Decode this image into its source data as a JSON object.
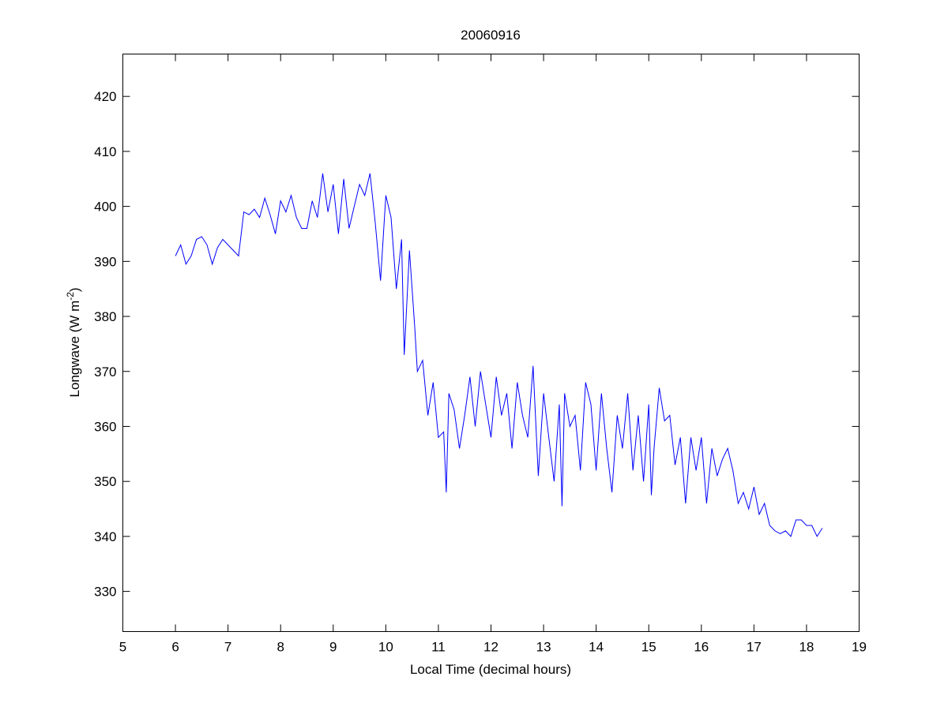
{
  "chart_data": {
    "type": "line",
    "title": "20060916",
    "xlabel": "Local Time (decimal hours)",
    "ylabel": {
      "base": "Longwave (W m",
      "sup": "-2",
      "end": ")"
    },
    "xlim": [
      5,
      19
    ],
    "ylim": [
      322.7,
      427.7
    ],
    "xticks": [
      5,
      6,
      7,
      8,
      9,
      10,
      11,
      12,
      13,
      14,
      15,
      16,
      17,
      18,
      19
    ],
    "yticks": [
      330,
      340,
      350,
      360,
      370,
      380,
      390,
      400,
      410,
      420
    ],
    "grid": false,
    "series": [
      {
        "name": "Longwave",
        "color": "#0000ff",
        "x": [
          6.0,
          6.1,
          6.2,
          6.3,
          6.4,
          6.5,
          6.6,
          6.7,
          6.8,
          6.9,
          7.0,
          7.1,
          7.2,
          7.3,
          7.4,
          7.5,
          7.6,
          7.7,
          7.8,
          7.9,
          8.0,
          8.1,
          8.2,
          8.3,
          8.4,
          8.5,
          8.6,
          8.7,
          8.8,
          8.9,
          9.0,
          9.1,
          9.2,
          9.3,
          9.4,
          9.5,
          9.6,
          9.7,
          9.8,
          9.9,
          10.0,
          10.1,
          10.2,
          10.3,
          10.35,
          10.45,
          10.55,
          10.6,
          10.7,
          10.8,
          10.9,
          11.0,
          11.1,
          11.15,
          11.2,
          11.3,
          11.4,
          11.5,
          11.6,
          11.7,
          11.8,
          11.9,
          12.0,
          12.1,
          12.2,
          12.3,
          12.4,
          12.5,
          12.6,
          12.7,
          12.8,
          12.9,
          13.0,
          13.1,
          13.2,
          13.3,
          13.35,
          13.4,
          13.5,
          13.6,
          13.7,
          13.8,
          13.9,
          14.0,
          14.1,
          14.2,
          14.3,
          14.4,
          14.5,
          14.6,
          14.7,
          14.8,
          14.9,
          15.0,
          15.05,
          15.1,
          15.2,
          15.3,
          15.4,
          15.5,
          15.6,
          15.7,
          15.8,
          15.9,
          16.0,
          16.1,
          16.2,
          16.3,
          16.4,
          16.5,
          16.6,
          16.7,
          16.8,
          16.9,
          17.0,
          17.1,
          17.2,
          17.3,
          17.4,
          17.5,
          17.6,
          17.7,
          17.8,
          17.9,
          18.0,
          18.1,
          18.2,
          18.3
        ],
        "y": [
          391,
          393,
          389.5,
          391,
          394,
          394.5,
          393,
          389.5,
          392.5,
          394,
          393,
          392,
          391,
          399,
          398.5,
          399.5,
          398,
          401.5,
          398.5,
          395,
          401,
          399,
          402,
          398,
          396,
          396,
          401,
          398,
          406,
          399,
          404,
          395,
          405,
          396,
          400,
          404,
          402,
          406,
          397,
          386.5,
          402,
          398,
          385,
          394,
          373,
          392,
          378,
          370,
          372,
          362,
          368,
          358,
          359,
          348,
          366,
          363,
          356,
          362,
          369,
          360,
          370,
          364,
          358,
          369,
          362,
          366,
          356,
          368,
          362,
          358,
          371,
          351,
          366,
          358,
          350,
          364,
          345.5,
          366,
          360,
          362,
          352,
          368,
          364,
          352,
          366,
          356,
          348,
          362,
          356,
          366,
          352,
          362,
          350,
          364,
          347.5,
          356,
          367,
          361,
          362,
          353,
          358,
          346,
          358,
          352,
          358,
          346,
          356,
          351,
          354,
          356,
          352,
          346,
          348,
          345,
          349,
          344,
          346,
          342,
          341,
          340.5,
          341,
          340,
          343,
          343,
          342,
          342,
          340,
          341.5
        ]
      }
    ]
  }
}
